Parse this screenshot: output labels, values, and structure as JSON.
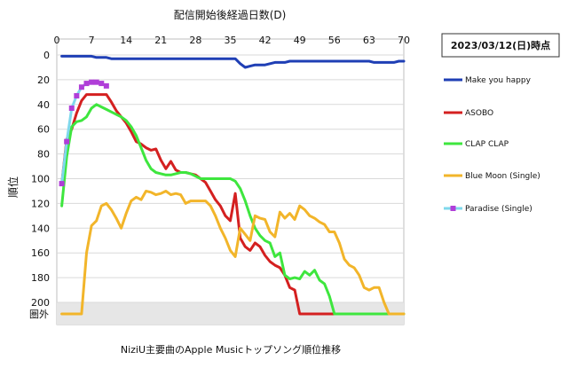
{
  "chart_data": {
    "type": "line",
    "title": "配信開始後経過日数(D)",
    "xlabel": "配信開始後経過日数(D)",
    "ylabel": "順位",
    "caption": "NiziU主要曲のApple Musicトップソング順位推移",
    "date_label": "2023/03/12(日)時点",
    "out_of_chart_label": "圏外",
    "x_ticks": [
      0,
      7,
      14,
      21,
      28,
      35,
      42,
      49,
      56,
      63,
      70
    ],
    "y_ticks": [
      0,
      20,
      40,
      60,
      80,
      100,
      120,
      140,
      160,
      180,
      200
    ],
    "xlim": [
      0,
      70
    ],
    "ylim": [
      0,
      210
    ],
    "y_inverted": true,
    "out_of_chart_value": 210,
    "grid": "horizontal",
    "legend_position": "right",
    "series": [
      {
        "name": "Make you happy",
        "color": "#1f3fb5",
        "marker": "none",
        "points": [
          [
            1,
            1
          ],
          [
            2,
            1
          ],
          [
            3,
            1
          ],
          [
            4,
            1
          ],
          [
            5,
            1
          ],
          [
            6,
            1
          ],
          [
            7,
            1
          ],
          [
            8,
            2
          ],
          [
            9,
            2
          ],
          [
            10,
            2
          ],
          [
            11,
            3
          ],
          [
            12,
            3
          ],
          [
            13,
            3
          ],
          [
            14,
            3
          ],
          [
            15,
            3
          ],
          [
            16,
            3
          ],
          [
            17,
            3
          ],
          [
            18,
            3
          ],
          [
            19,
            3
          ],
          [
            20,
            3
          ],
          [
            21,
            3
          ],
          [
            22,
            3
          ],
          [
            23,
            3
          ],
          [
            24,
            3
          ],
          [
            25,
            3
          ],
          [
            26,
            3
          ],
          [
            27,
            3
          ],
          [
            28,
            3
          ],
          [
            29,
            3
          ],
          [
            30,
            3
          ],
          [
            31,
            3
          ],
          [
            32,
            3
          ],
          [
            33,
            3
          ],
          [
            34,
            3
          ],
          [
            35,
            3
          ],
          [
            36,
            3
          ],
          [
            37,
            7
          ],
          [
            38,
            10
          ],
          [
            39,
            9
          ],
          [
            40,
            8
          ],
          [
            41,
            8
          ],
          [
            42,
            8
          ],
          [
            43,
            7
          ],
          [
            44,
            6
          ],
          [
            45,
            6
          ],
          [
            46,
            6
          ],
          [
            47,
            5
          ],
          [
            48,
            5
          ],
          [
            49,
            5
          ],
          [
            50,
            5
          ],
          [
            51,
            5
          ],
          [
            52,
            5
          ],
          [
            53,
            5
          ],
          [
            54,
            5
          ],
          [
            55,
            5
          ],
          [
            56,
            5
          ],
          [
            57,
            5
          ],
          [
            58,
            5
          ],
          [
            59,
            5
          ],
          [
            60,
            5
          ],
          [
            61,
            5
          ],
          [
            62,
            5
          ],
          [
            63,
            5
          ],
          [
            64,
            6
          ],
          [
            65,
            6
          ],
          [
            66,
            6
          ],
          [
            67,
            6
          ],
          [
            68,
            6
          ],
          [
            69,
            5
          ],
          [
            70,
            5
          ]
        ]
      },
      {
        "name": "ASOBO",
        "color": "#d42020",
        "marker": "none",
        "points": [
          [
            1,
            104
          ],
          [
            2,
            68
          ],
          [
            3,
            60
          ],
          [
            4,
            47
          ],
          [
            5,
            37
          ],
          [
            6,
            32
          ],
          [
            7,
            32
          ],
          [
            8,
            32
          ],
          [
            9,
            32
          ],
          [
            10,
            32
          ],
          [
            11,
            38
          ],
          [
            12,
            45
          ],
          [
            13,
            50
          ],
          [
            14,
            55
          ],
          [
            15,
            62
          ],
          [
            16,
            70
          ],
          [
            17,
            72
          ],
          [
            18,
            75
          ],
          [
            19,
            77
          ],
          [
            20,
            76
          ],
          [
            21,
            85
          ],
          [
            22,
            92
          ],
          [
            23,
            86
          ],
          [
            24,
            93
          ],
          [
            25,
            95
          ],
          [
            26,
            95
          ],
          [
            27,
            96
          ],
          [
            28,
            97
          ],
          [
            29,
            100
          ],
          [
            30,
            103
          ],
          [
            31,
            110
          ],
          [
            32,
            117
          ],
          [
            33,
            122
          ],
          [
            34,
            130
          ],
          [
            35,
            134
          ],
          [
            36,
            112
          ],
          [
            37,
            148
          ],
          [
            38,
            155
          ],
          [
            39,
            158
          ],
          [
            40,
            152
          ],
          [
            41,
            155
          ],
          [
            42,
            162
          ],
          [
            43,
            167
          ],
          [
            44,
            170
          ],
          [
            45,
            172
          ],
          [
            46,
            178
          ],
          [
            47,
            188
          ],
          [
            48,
            190
          ],
          [
            49,
            210
          ],
          [
            50,
            210
          ],
          [
            51,
            210
          ],
          [
            52,
            210
          ],
          [
            53,
            210
          ],
          [
            54,
            210
          ],
          [
            55,
            210
          ],
          [
            56,
            210
          ]
        ]
      },
      {
        "name": "CLAP CLAP",
        "color": "#3ee63e",
        "marker": "none",
        "points": [
          [
            1,
            122
          ],
          [
            2,
            82
          ],
          [
            3,
            58
          ],
          [
            4,
            54
          ],
          [
            5,
            53
          ],
          [
            6,
            50
          ],
          [
            7,
            43
          ],
          [
            8,
            40
          ],
          [
            9,
            42
          ],
          [
            10,
            44
          ],
          [
            11,
            46
          ],
          [
            12,
            48
          ],
          [
            13,
            50
          ],
          [
            14,
            53
          ],
          [
            15,
            58
          ],
          [
            16,
            65
          ],
          [
            17,
            75
          ],
          [
            18,
            85
          ],
          [
            19,
            92
          ],
          [
            20,
            95
          ],
          [
            21,
            96
          ],
          [
            22,
            97
          ],
          [
            23,
            97
          ],
          [
            24,
            96
          ],
          [
            25,
            95
          ],
          [
            26,
            95
          ],
          [
            27,
            96
          ],
          [
            28,
            98
          ],
          [
            29,
            100
          ],
          [
            30,
            100
          ],
          [
            31,
            100
          ],
          [
            32,
            100
          ],
          [
            33,
            100
          ],
          [
            34,
            100
          ],
          [
            35,
            100
          ],
          [
            36,
            102
          ],
          [
            37,
            108
          ],
          [
            38,
            118
          ],
          [
            39,
            130
          ],
          [
            40,
            140
          ],
          [
            41,
            146
          ],
          [
            42,
            150
          ],
          [
            43,
            152
          ],
          [
            44,
            163
          ],
          [
            45,
            160
          ],
          [
            46,
            178
          ],
          [
            47,
            181
          ],
          [
            48,
            180
          ],
          [
            49,
            181
          ],
          [
            50,
            175
          ],
          [
            51,
            178
          ],
          [
            52,
            174
          ],
          [
            53,
            182
          ],
          [
            54,
            185
          ],
          [
            55,
            195
          ],
          [
            56,
            210
          ],
          [
            57,
            210
          ],
          [
            58,
            210
          ],
          [
            59,
            210
          ],
          [
            60,
            210
          ],
          [
            61,
            210
          ],
          [
            62,
            210
          ],
          [
            63,
            210
          ],
          [
            64,
            210
          ],
          [
            65,
            210
          ],
          [
            66,
            210
          ],
          [
            67,
            210
          ],
          [
            68,
            210
          ],
          [
            69,
            210
          ],
          [
            70,
            210
          ]
        ]
      },
      {
        "name": "Blue Moon (Single)",
        "color": "#f2b52a",
        "marker": "none",
        "points": [
          [
            1,
            210
          ],
          [
            2,
            210
          ],
          [
            3,
            210
          ],
          [
            4,
            210
          ],
          [
            5,
            210
          ],
          [
            6,
            160
          ],
          [
            7,
            138
          ],
          [
            8,
            134
          ],
          [
            9,
            122
          ],
          [
            10,
            120
          ],
          [
            11,
            125
          ],
          [
            12,
            132
          ],
          [
            13,
            140
          ],
          [
            14,
            128
          ],
          [
            15,
            118
          ],
          [
            16,
            115
          ],
          [
            17,
            117
          ],
          [
            18,
            110
          ],
          [
            19,
            111
          ],
          [
            20,
            113
          ],
          [
            21,
            112
          ],
          [
            22,
            110
          ],
          [
            23,
            113
          ],
          [
            24,
            112
          ],
          [
            25,
            113
          ],
          [
            26,
            120
          ],
          [
            27,
            118
          ],
          [
            28,
            118
          ],
          [
            29,
            118
          ],
          [
            30,
            118
          ],
          [
            31,
            122
          ],
          [
            32,
            130
          ],
          [
            33,
            140
          ],
          [
            34,
            148
          ],
          [
            35,
            158
          ],
          [
            36,
            163
          ],
          [
            37,
            140
          ],
          [
            38,
            145
          ],
          [
            39,
            150
          ],
          [
            40,
            130
          ],
          [
            41,
            132
          ],
          [
            42,
            133
          ],
          [
            43,
            143
          ],
          [
            44,
            147
          ],
          [
            45,
            127
          ],
          [
            46,
            132
          ],
          [
            47,
            128
          ],
          [
            48,
            133
          ],
          [
            49,
            122
          ],
          [
            50,
            125
          ],
          [
            51,
            130
          ],
          [
            52,
            132
          ],
          [
            53,
            135
          ],
          [
            54,
            137
          ],
          [
            55,
            143
          ],
          [
            56,
            143
          ],
          [
            57,
            152
          ],
          [
            58,
            165
          ],
          [
            59,
            170
          ],
          [
            60,
            172
          ],
          [
            61,
            178
          ],
          [
            62,
            188
          ],
          [
            63,
            190
          ],
          [
            64,
            188
          ],
          [
            65,
            188
          ],
          [
            66,
            200
          ],
          [
            67,
            210
          ],
          [
            68,
            210
          ],
          [
            69,
            210
          ],
          [
            70,
            210
          ]
        ]
      },
      {
        "name": "Paradise (Single)",
        "color": "#7fd8ec",
        "marker": "square",
        "marker_color": "#b03ed8",
        "points": [
          [
            1,
            104
          ],
          [
            2,
            70
          ],
          [
            3,
            43
          ],
          [
            4,
            33
          ],
          [
            5,
            26
          ],
          [
            6,
            23
          ],
          [
            7,
            22
          ],
          [
            8,
            22
          ],
          [
            9,
            23
          ],
          [
            10,
            25
          ]
        ]
      }
    ]
  }
}
